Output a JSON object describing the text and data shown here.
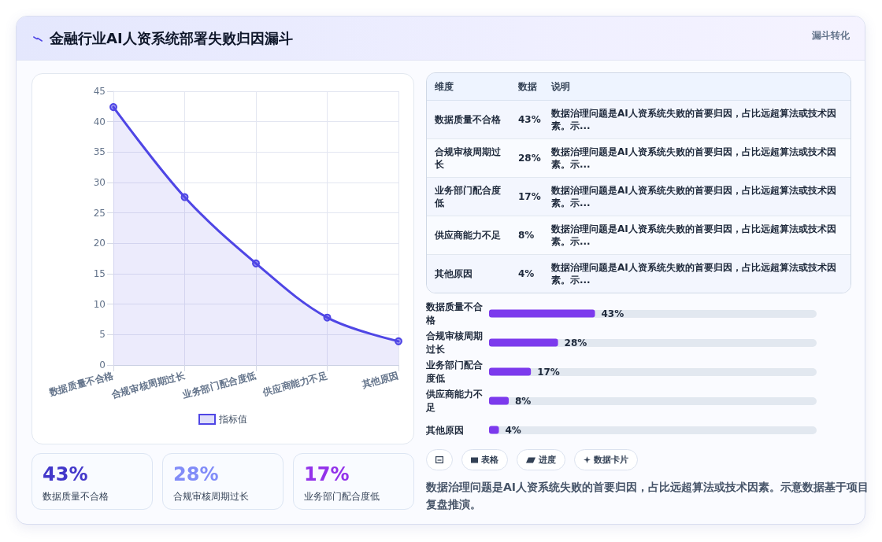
{
  "chart_data": [
    {
      "type": "area",
      "title": "金融行业AI人资系统部署失败归因漏斗",
      "categories": [
        "数据质量不合格",
        "合规审核周期过长",
        "业务部门配合度低",
        "供应商能力不足",
        "其他原因"
      ],
      "series": [
        {
          "name": "指标值",
          "color": "#4f46e5",
          "values": [
            42.4,
            27.6,
            16.7,
            7.8,
            3.9
          ]
        }
      ],
      "ylim": [
        0,
        45
      ],
      "yticks": [
        0,
        5,
        10,
        15,
        20,
        25,
        30,
        35,
        40,
        45
      ],
      "grid": true,
      "legend": "bottom",
      "marker": "circle"
    },
    {
      "type": "other",
      "categories": [
        "数据质量不合格",
        "合规审核周期过长",
        "业务部门配合度低"
      ],
      "value_labels": [
        "43%",
        "28%",
        "17%"
      ]
    },
    {
      "type": "other",
      "subtitle": "漏斗转化",
      "categories": [
        "数据质量不合格",
        "合规审核周期过长",
        "业务部门配合度低",
        "供应商能力不足",
        "其他原因"
      ],
      "value_labels": [
        "43%",
        "28%",
        "17%",
        "8%",
        "4%"
      ],
      "annotations": [
        "维度",
        "数据",
        "说明",
        "数据治理问题是AI人资系统失败的首要归因，占比远超算法或技术因素。示...",
        "数据治理问题是AI人资系统失败的首要归因，占比远超算法或技术因素。示...",
        "数据治理问题是AI人资系统失败的首要归因，占比远超算法或技术因素。示...",
        "数据治理问题是AI人资系统失败的首要归因，占比远超算法或技术因素。示...",
        "数据治理问题是AI人资系统失败的首要归因，占比远超算法或技术因素。示..."
      ]
    },
    {
      "type": "bar",
      "orientation": "horizontal",
      "categories": [
        "数据质量不合格",
        "合规审核周期过长",
        "业务部门配合度低",
        "供应商能力不足",
        "其他原因"
      ],
      "values": [
        43,
        28,
        17,
        8,
        4
      ],
      "value_labels": [
        "43%",
        "28%",
        "17%",
        "8%",
        "4%"
      ],
      "color": "#7c3aed",
      "xlim": [
        0,
        133
      ],
      "tick_labels": "y"
    },
    {
      "type": "other",
      "categories": [
        null,
        "表格",
        "进度",
        "数据卡片"
      ],
      "annotations": [
        "数据治理问题是AI人资系统失败的首要归因，占比远超算法或技术因素。示意数据基于项目复盘推演。"
      ]
    }
  ]
}
